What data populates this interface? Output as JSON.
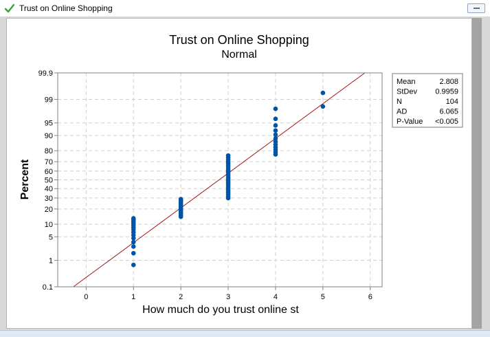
{
  "window": {
    "title": "Trust on Online Shopping",
    "check_icon": "check-icon"
  },
  "colors": {
    "point": "#0054a6",
    "fit_line": "#a01818",
    "grid": "#cfcfcf",
    "frame": "#d8d8d8"
  },
  "chart_data": {
    "type": "scatter",
    "title": "Trust on Online Shopping",
    "subtitle": "Normal",
    "xlabel": "How much do you trust online st",
    "ylabel": "Percent",
    "xlim": [
      -0.6,
      6.25
    ],
    "y_scale": "normal-probability",
    "y_ticks": [
      0.1,
      1,
      5,
      10,
      20,
      30,
      40,
      50,
      60,
      70,
      80,
      90,
      95,
      99,
      99.9
    ],
    "x_ticks": [
      0,
      1,
      2,
      3,
      4,
      5,
      6
    ],
    "grid": true,
    "fit_line": {
      "mean": 2.808,
      "stdev": 0.9959
    },
    "series": [
      {
        "x": 1,
        "y": [
          0.7,
          1.7,
          2.7,
          3.6,
          4.6,
          5.5,
          6.5,
          7.5,
          8.4,
          9.4,
          10.5,
          11.4,
          12.4,
          13.3
        ]
      },
      {
        "x": 2,
        "y": [
          14.3,
          15.4,
          16.3,
          17.2,
          18.3,
          19.3,
          20.2,
          21.2,
          22.1,
          23.1,
          24.1,
          25.0,
          26.0,
          27.0,
          27.9,
          28.9
        ]
      },
      {
        "x": 3,
        "y": [
          29.9,
          31.8,
          33.7,
          35.6,
          37.5,
          39.5,
          41.4,
          43.3,
          45.2,
          47.1,
          49.0,
          51.0,
          52.9,
          54.8,
          56.7,
          58.6,
          60.5,
          62.5,
          64.4,
          66.3,
          68.2,
          70.1,
          72.0,
          74.0,
          75.9
        ]
      },
      {
        "x": 4,
        "y": [
          76.9,
          78.8,
          80.8,
          82.7,
          84.6,
          86.5,
          88.4,
          90.4,
          92.3,
          94.2,
          96.1,
          98.0
        ]
      },
      {
        "x": 5,
        "y": [
          98.3,
          99.4
        ]
      }
    ],
    "stats": [
      {
        "label": "Mean",
        "value": "2.808"
      },
      {
        "label": "StDev",
        "value": "0.9959"
      },
      {
        "label": "N",
        "value": "104"
      },
      {
        "label": "AD",
        "value": "6.065"
      },
      {
        "label": "P-Value",
        "value": "<0.005"
      }
    ],
    "legend_position": "top-right"
  }
}
